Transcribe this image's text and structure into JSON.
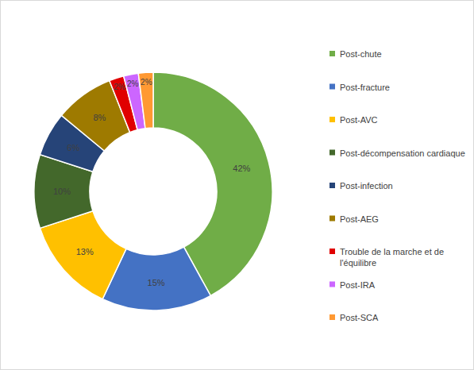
{
  "chart_data": {
    "type": "pie",
    "categories": [
      "Post-chute",
      "Post-fracture",
      "Post-AVC",
      "Post-décompensation cardiaque",
      "Post-infection",
      "Post-AEG",
      "Trouble de la marche et de l'équilibre",
      "Post-IRA",
      "Post-SCA"
    ],
    "values": [
      42,
      15,
      13,
      10,
      6,
      8,
      2,
      2,
      2
    ],
    "value_labels": [
      "42%",
      "15%",
      "13%",
      "10%",
      "6%",
      "8%",
      "2%",
      "2%",
      "2%"
    ],
    "colors": [
      "#70ad47",
      "#4472c4",
      "#ffc000",
      "#43682b",
      "#264478",
      "#9e7a00",
      "#e00000",
      "#cc66ff",
      "#ff9933"
    ],
    "data_labels": true,
    "legend": "right"
  }
}
